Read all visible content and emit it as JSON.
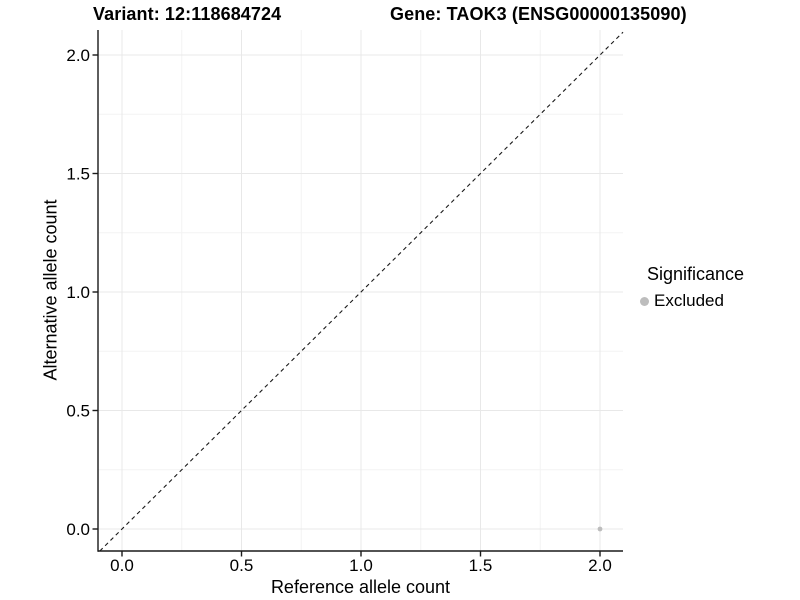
{
  "page": {
    "background": "#ffffff"
  },
  "chart_data": {
    "type": "scatter",
    "titles": {
      "left": "Variant: 12:118684724",
      "right": "Gene: TAOK3 (ENSG00000135090)"
    },
    "xlabel": "Reference allele count",
    "ylabel": "Alternative allele count",
    "xlim": [
      -0.1,
      2.1
    ],
    "ylim": [
      -0.1,
      2.1
    ],
    "x_tick_values": [
      0.0,
      0.5,
      1.0,
      1.5,
      2.0
    ],
    "x_tick_labels": [
      "0.0",
      "0.5",
      "1.0",
      "1.5",
      "2.0"
    ],
    "y_tick_values": [
      0.0,
      0.5,
      1.0,
      1.5,
      2.0
    ],
    "y_tick_labels": [
      "0.0",
      "0.5",
      "1.0",
      "1.5",
      "2.0"
    ],
    "grid": {
      "major": true,
      "minor": true
    },
    "reference_line": {
      "style": "dashed",
      "slope": 1,
      "intercept": 0
    },
    "series": [
      {
        "name": "Excluded",
        "color": "#bdbdbd",
        "points": [
          [
            2.0,
            0.0
          ]
        ]
      }
    ],
    "legend": {
      "position": "right",
      "title": "Significance",
      "items": [
        {
          "label": "Excluded",
          "color": "#bdbdbd"
        }
      ]
    }
  },
  "colors": {
    "grid_major": "#e8e8e8",
    "grid_minor": "#f3f3f3",
    "axis": "#1a1a1a",
    "reference_line": "#1a1a1a",
    "tick_text": "#000000"
  }
}
